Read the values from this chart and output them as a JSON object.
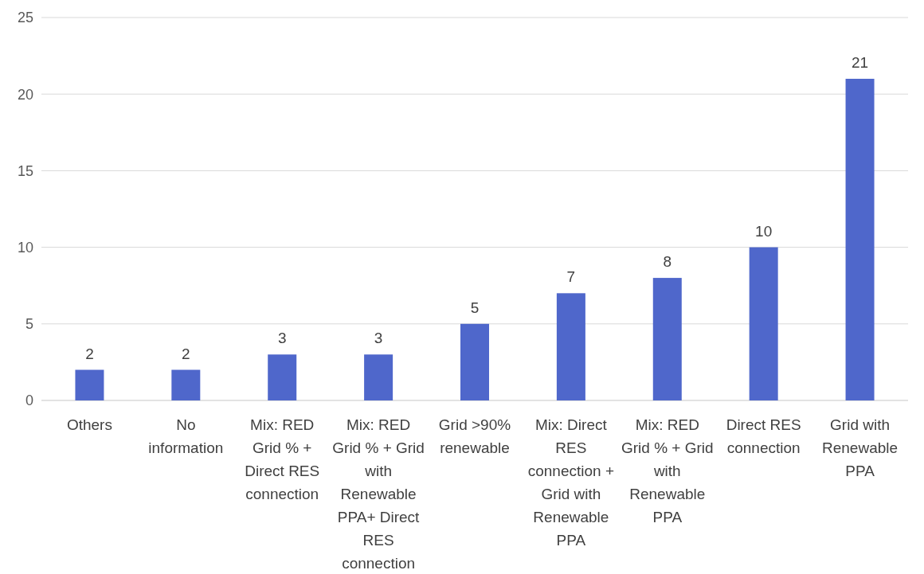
{
  "chart_data": {
    "type": "bar",
    "categories": [
      "Others",
      "No information",
      "Mix: RED Grid % + Direct RES connection",
      "Mix: RED Grid % + Grid with Renewable PPA+ Direct RES connection",
      "Grid >90% renewable",
      "Mix: Direct RES connection + Grid with Renewable PPA",
      "Mix: RED Grid % + Grid with Renewable PPA",
      "Direct RES connection",
      "Grid with Renewable PPA"
    ],
    "values": [
      2,
      2,
      3,
      3,
      5,
      7,
      8,
      10,
      21
    ],
    "color": "#4f67cb",
    "ylim": [
      0,
      25
    ],
    "yticks": [
      0,
      5,
      10,
      15,
      20,
      25
    ],
    "grid": "y",
    "data_labels": true
  }
}
